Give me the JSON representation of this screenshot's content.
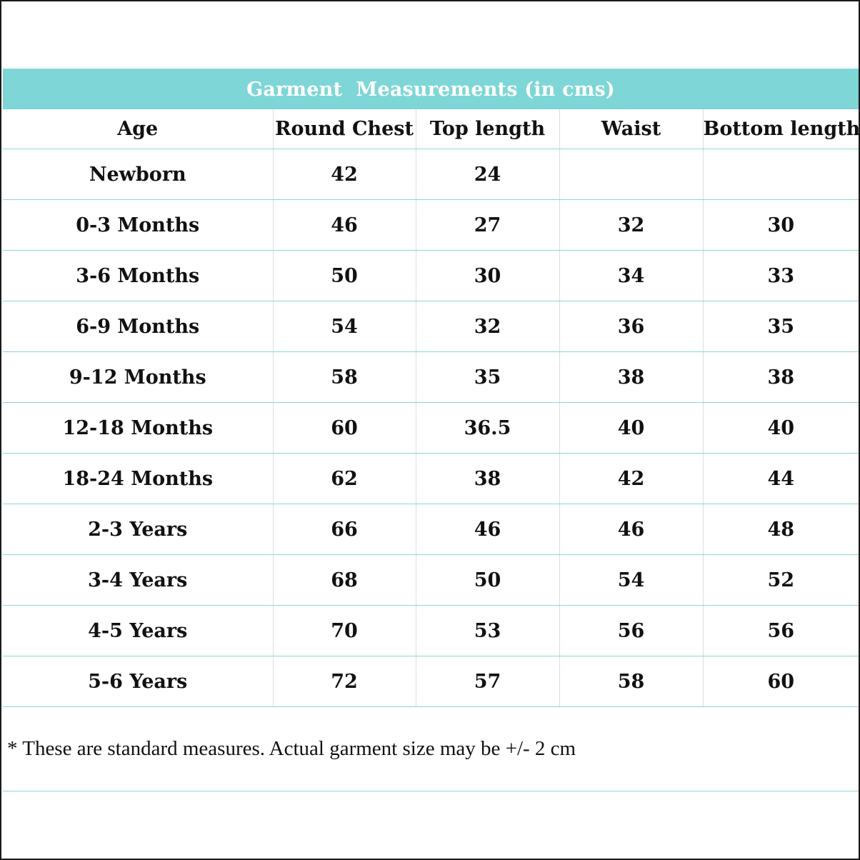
{
  "title": "Garment  Measurements (in cms)",
  "columns": [
    "Age",
    "Round Chest",
    "Top length",
    "Waist",
    "Bottom length"
  ],
  "rows": [
    [
      "Newborn",
      "42",
      "24",
      "",
      ""
    ],
    [
      "0-3 Months",
      "46",
      "27",
      "32",
      "30"
    ],
    [
      "3-6 Months",
      "50",
      "30",
      "34",
      "33"
    ],
    [
      "6-9 Months",
      "54",
      "32",
      "36",
      "35"
    ],
    [
      "9-12 Months",
      "58",
      "35",
      "38",
      "38"
    ],
    [
      "12-18 Months",
      "60",
      "36.5",
      "40",
      "40"
    ],
    [
      "18-24 Months",
      "62",
      "38",
      "42",
      "44"
    ],
    [
      "2-3 Years",
      "66",
      "46",
      "46",
      "48"
    ],
    [
      "3-4 Years",
      "68",
      "50",
      "54",
      "52"
    ],
    [
      "4-5 Years",
      "70",
      "53",
      "56",
      "56"
    ],
    [
      "5-6 Years",
      "72",
      "57",
      "58",
      "60"
    ]
  ],
  "footnote": "* These are standard measures. Actual garment size may be +/- 2 cm",
  "colors": {
    "banner": "#7ed6d6",
    "row_divider": "#8ad4d6",
    "text": "#111111"
  }
}
